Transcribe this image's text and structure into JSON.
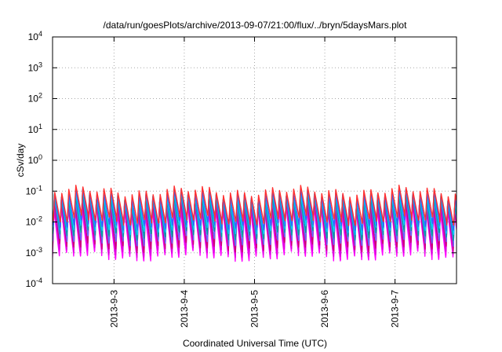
{
  "chart_data": {
    "type": "line",
    "title": "/data/run/goesPlots/archive/2013-09-07/21:00/flux/../bryn/5daysMars.plot",
    "xlabel": "Coordinated Universal Time (UTC)",
    "ylabel": "cSv/day",
    "y_scale": "log",
    "ylim": [
      0.0001,
      10000
    ],
    "y_ticks": [
      {
        "base": "10",
        "exp": "-4"
      },
      {
        "base": "10",
        "exp": "-3"
      },
      {
        "base": "10",
        "exp": "-2"
      },
      {
        "base": "10",
        "exp": "-1"
      },
      {
        "base": "10",
        "exp": "0"
      },
      {
        "base": "10",
        "exp": "1"
      },
      {
        "base": "10",
        "exp": "2"
      },
      {
        "base": "10",
        "exp": "3"
      },
      {
        "base": "10",
        "exp": "4"
      }
    ],
    "xlim": [
      "2013-09-02 03:00",
      "2013-09-07 21:00"
    ],
    "x_ticks": [
      "2013-9-3",
      "2013-9-4",
      "2013-9-5",
      "2013-9-6",
      "2013-9-7"
    ],
    "grid": true,
    "legend": "none",
    "cycle_hours": 2.4,
    "series": [
      {
        "color": "#ff00ff",
        "peak": 0.025,
        "trough": 0.0008
      },
      {
        "color": "#dd00dd",
        "peak": 0.03,
        "trough": 0.0011
      },
      {
        "color": "#cc0077",
        "peak": 0.04,
        "trough": 0.0016
      },
      {
        "color": "#6666ff",
        "peak": 0.05,
        "trough": 0.0025
      },
      {
        "color": "#00a0a0",
        "peak": 0.06,
        "trough": 0.004
      },
      {
        "color": "#00ccff",
        "peak": 0.07,
        "trough": 0.006
      },
      {
        "color": "#3366ff",
        "peak": 0.08,
        "trough": 0.008
      },
      {
        "color": "#ff3030",
        "peak": 0.1,
        "trough": 0.012
      }
    ]
  }
}
